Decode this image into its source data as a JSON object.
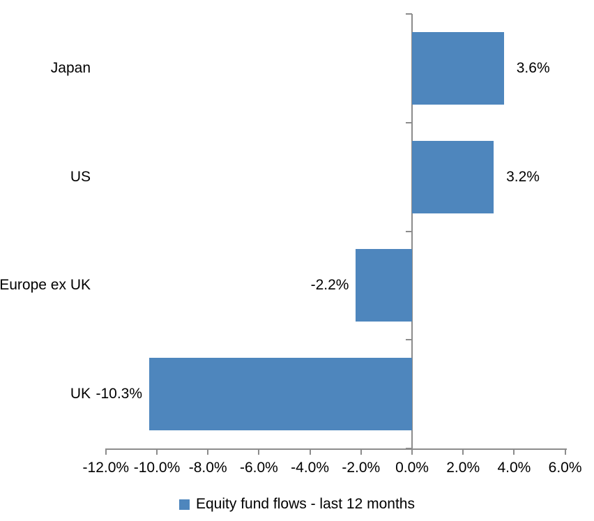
{
  "chart_data": {
    "type": "bar",
    "orientation": "horizontal",
    "title": "",
    "xlabel": "",
    "ylabel": "",
    "categories": [
      "Japan",
      "US",
      "Europe ex UK",
      "UK"
    ],
    "series": [
      {
        "name": "Equity fund flows - last 12 months",
        "values": [
          3.6,
          3.2,
          -2.2,
          -10.3
        ],
        "data_labels": [
          "3.6%",
          "3.2%",
          "-2.2%",
          "-10.3%"
        ]
      }
    ],
    "xlim": [
      -12,
      6
    ],
    "x_ticks": [
      {
        "value": -12,
        "label": "-12.0%"
      },
      {
        "value": -10,
        "label": "-10.0%"
      },
      {
        "value": -8,
        "label": "-8.0%"
      },
      {
        "value": -6,
        "label": "-6.0%"
      },
      {
        "value": -4,
        "label": "-4.0%"
      },
      {
        "value": -2,
        "label": "-2.0%"
      },
      {
        "value": 0,
        "label": "0.0%"
      },
      {
        "value": 2,
        "label": "2.0%"
      },
      {
        "value": 4,
        "label": "4.0%"
      },
      {
        "value": 6,
        "label": "6.0%"
      }
    ],
    "grid": false,
    "legend": {
      "position": "bottom",
      "label": "Equity fund flows - last 12 months"
    },
    "colors": {
      "bar": "#4e86bd",
      "axis": "#8c8c8c",
      "text": "#000000"
    }
  }
}
